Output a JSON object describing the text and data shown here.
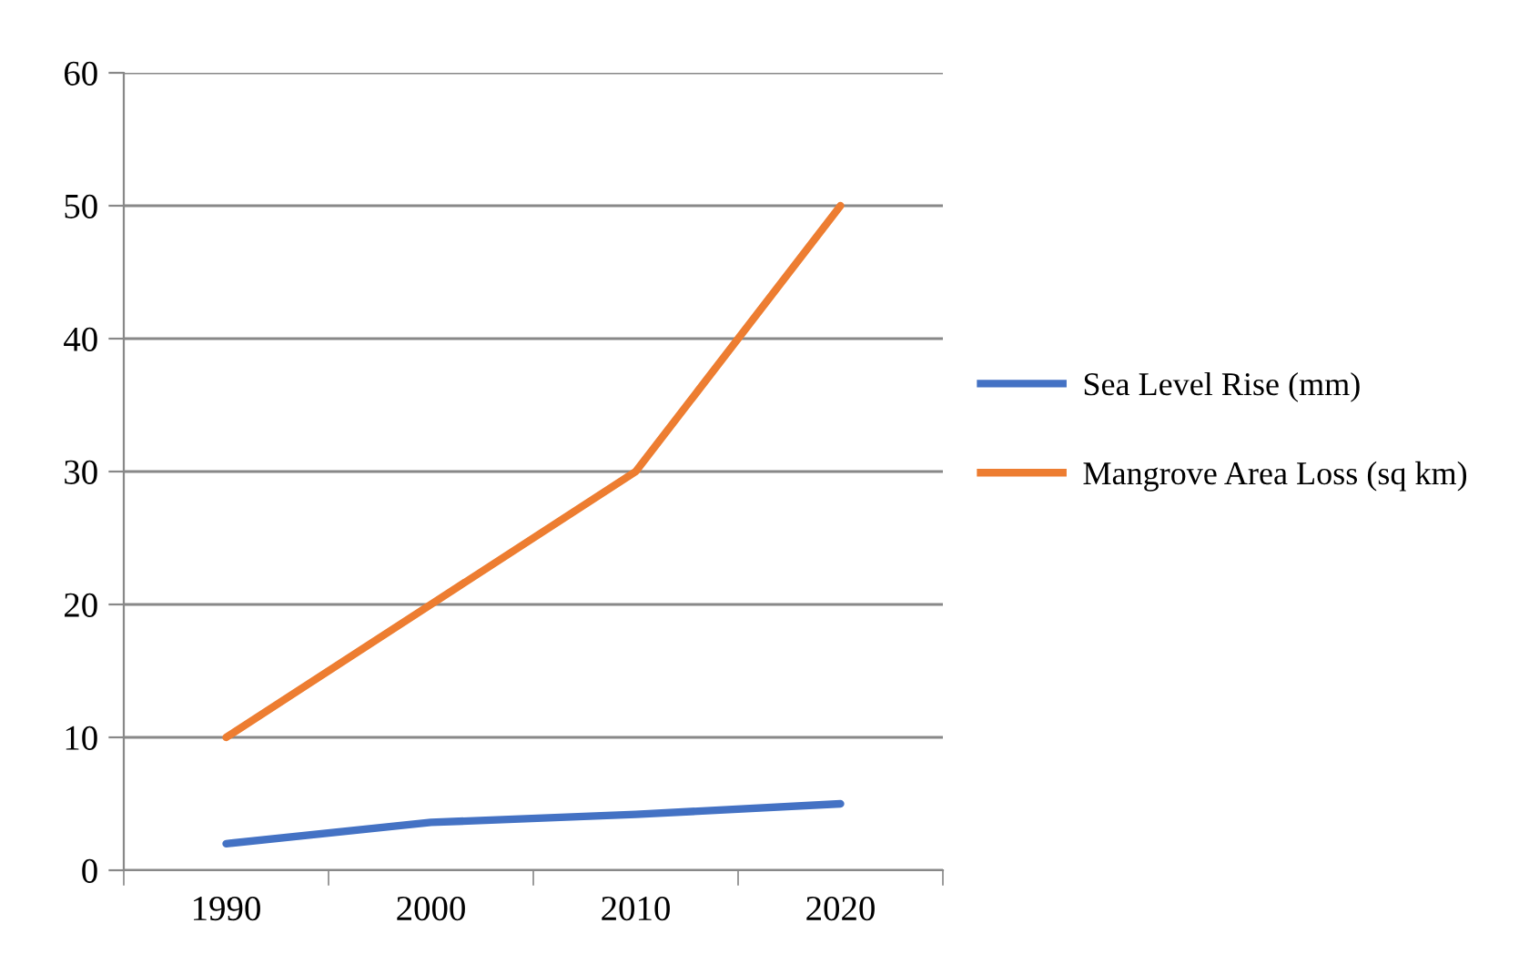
{
  "chart_data": {
    "type": "line",
    "categories": [
      "1990",
      "2000",
      "2010",
      "2020"
    ],
    "series": [
      {
        "name": "Sea Level Rise (mm)",
        "color": "#4472c4",
        "values": [
          2.0,
          3.6,
          4.2,
          5.0
        ]
      },
      {
        "name": "Mangrove Area Loss (sq km)",
        "color": "#ed7d31",
        "values": [
          10,
          20,
          30,
          50
        ]
      }
    ],
    "ylim": [
      0,
      60
    ],
    "yticks": [
      0,
      10,
      20,
      30,
      40,
      50,
      60
    ],
    "grid": "y",
    "legend": "right",
    "marker": "none",
    "line_style": "solid"
  }
}
